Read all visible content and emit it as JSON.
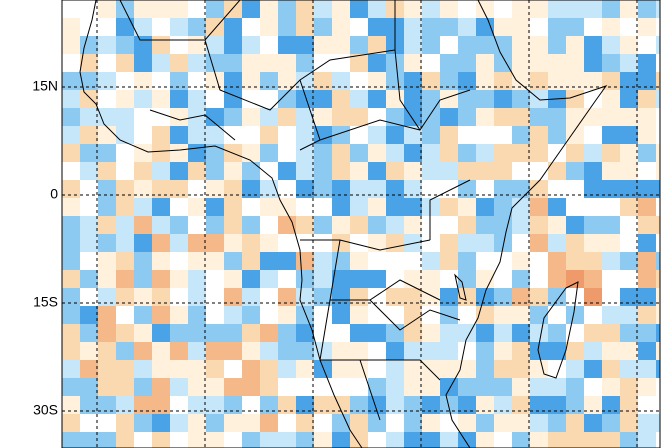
{
  "map": {
    "lat_labels": [
      "15N",
      "0",
      "15S",
      "30S"
    ]
  }
}
